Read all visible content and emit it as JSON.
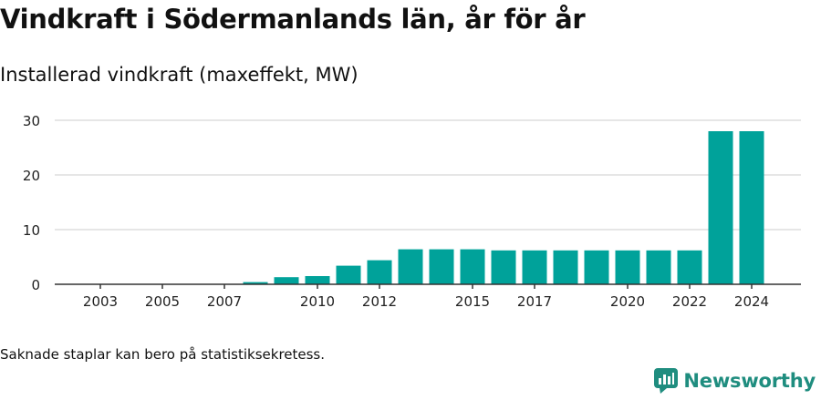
{
  "header": {
    "title": "Vindkraft i Södermanlands län, år för år",
    "subtitle": "Installerad vindkraft (maxeffekt, MW)"
  },
  "footer": {
    "note": "Saknade staplar kan bero på statistiksekretess.",
    "brand": "Newsworthy",
    "brand_icon": "newsworthy-logo-icon"
  },
  "colors": {
    "bar": "#00a29a",
    "grid": "#dddddd",
    "axis": "#333333",
    "brand": "#1f8d7f"
  },
  "chart_data": {
    "type": "bar",
    "categories": [
      "2002",
      "2003",
      "2004",
      "2005",
      "2006",
      "2007",
      "2008",
      "2009",
      "2010",
      "2011",
      "2012",
      "2013",
      "2014",
      "2015",
      "2016",
      "2017",
      "2018",
      "2019",
      "2020",
      "2021",
      "2022",
      "2023",
      "2024"
    ],
    "x_tick_labels": [
      "2003",
      "2005",
      "2007",
      "2010",
      "2012",
      "2015",
      "2017",
      "2020",
      "2022",
      "2024"
    ],
    "values": [
      0,
      0,
      0,
      0,
      0,
      0,
      0.4,
      1.3,
      1.5,
      3.4,
      4.4,
      6.4,
      6.4,
      6.4,
      6.2,
      6.2,
      6.2,
      6.2,
      6.2,
      6.2,
      6.2,
      28,
      28
    ],
    "y_ticks": [
      0,
      10,
      20,
      30
    ],
    "ylim": [
      0,
      30
    ],
    "grid": true,
    "legend": "none"
  }
}
